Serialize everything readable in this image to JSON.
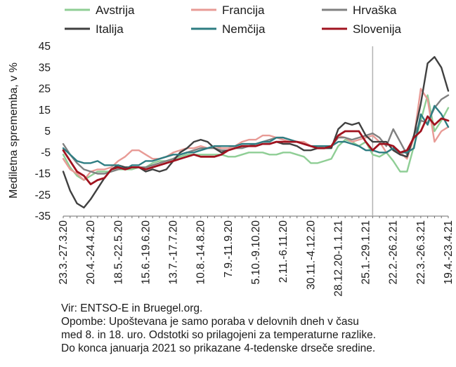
{
  "chart_data": {
    "type": "line",
    "ylabel": "Mediletna sprememba, v %",
    "ylim": [
      -35,
      45
    ],
    "yticks": [
      45,
      35,
      25,
      15,
      5,
      -5,
      -15,
      -25,
      -35
    ],
    "x_tick_labels": [
      "23.3.-27.3.20",
      "20.4.-24.4.20",
      "18.5.-22.5.20",
      "15.6.-19.6.20",
      "13.7.-17.7.20",
      "10.8.-14.8.20",
      "7.9.-11.9.20",
      "5.10.-9.10.20",
      "2.11.-6.11.20",
      "30.11.-4.12.20",
      "28.12.20-1.1.21",
      "25.1.-29.1.21",
      "22.2.-26.2.21",
      "22.3.-26.3.21",
      "19.4.-23.4.21"
    ],
    "x_tick_week_index": [
      0,
      4,
      8,
      12,
      16,
      20,
      24,
      28,
      32,
      36,
      40,
      44,
      48,
      52,
      56
    ],
    "vertical_marker_week_index": 45,
    "grid": false,
    "legend_position": "top",
    "series": [
      {
        "name": "Avstrija",
        "color": "#8fce95",
        "values": [
          -6,
          -12,
          -16,
          -18,
          -16,
          -14,
          -14,
          -14,
          -13,
          -13,
          -13,
          -12,
          -12,
          -10,
          -9,
          -9,
          -8,
          -7,
          -6,
          -6,
          -6,
          -6,
          -6,
          -6,
          -7,
          -7,
          -6,
          -5,
          -5,
          -5,
          -6,
          -6,
          -5,
          -5,
          -6,
          -7,
          -10,
          -10,
          -9,
          -8,
          -2,
          1,
          0,
          -2,
          0,
          -6,
          -7,
          -5,
          -9,
          -14,
          -14,
          -2,
          10,
          22,
          5,
          10,
          16
        ]
      },
      {
        "name": "Francija",
        "color": "#e89b96",
        "values": [
          -8,
          -13,
          -15,
          -18,
          -14,
          -13,
          -13,
          -12,
          -9,
          -7,
          -4,
          -4,
          -6,
          -8,
          -8,
          -7,
          -5,
          -4,
          -3,
          -3,
          -2,
          -3,
          -2,
          -3,
          -3,
          -2,
          0,
          1,
          1,
          3,
          3,
          2,
          1,
          0,
          0,
          0,
          -2,
          -3,
          -2,
          -2,
          3,
          2,
          0,
          1,
          2,
          3,
          0,
          -5,
          -3,
          -5,
          -8,
          2,
          25,
          20,
          0,
          5,
          7
        ]
      },
      {
        "name": "Hrvaška",
        "color": "#808080",
        "values": [
          -1,
          -6,
          -10,
          -13,
          -14,
          -15,
          -15,
          -14,
          -13,
          -12,
          -12,
          -12,
          -12,
          -11,
          -10,
          -9,
          -8,
          -6,
          -5,
          -4,
          -3,
          -3,
          -3,
          -4,
          -4,
          -3,
          -3,
          -2,
          -1,
          0,
          1,
          2,
          2,
          1,
          0,
          -1,
          -2,
          -2,
          -2,
          -2,
          2,
          2,
          1,
          2,
          3,
          4,
          2,
          -2,
          6,
          0,
          -6,
          3,
          10,
          9,
          16,
          20,
          22
        ]
      },
      {
        "name": "Italija",
        "color": "#404040",
        "values": [
          -14,
          -23,
          -29,
          -31,
          -27,
          -22,
          -17,
          -13,
          -11,
          -12,
          -12,
          -12,
          -14,
          -13,
          -14,
          -13,
          -9,
          -5,
          -3,
          0,
          1,
          0,
          -3,
          -5,
          -4,
          -3,
          -2,
          -2,
          -2,
          -1,
          -1,
          0,
          -1,
          -1,
          -2,
          -4,
          -4,
          -3,
          -3,
          -3,
          6,
          9,
          8,
          9,
          3,
          0,
          0,
          0,
          -4,
          -6,
          -7,
          3,
          18,
          37,
          40,
          35,
          24
        ]
      },
      {
        "name": "Nemčija",
        "color": "#2e7d82",
        "values": [
          -3,
          -6,
          -9,
          -10,
          -10,
          -9,
          -11,
          -11,
          -11,
          -13,
          -11,
          -11,
          -9,
          -9,
          -8,
          -7,
          -6,
          -6,
          -5,
          -5,
          -4,
          -3,
          -2,
          -2,
          -2,
          -2,
          -1,
          -1,
          -1,
          0,
          0,
          2,
          2,
          1,
          0,
          -1,
          -2,
          -2,
          -2,
          -2,
          0,
          0,
          -1,
          -2,
          -4,
          -4,
          -5,
          -5,
          -3,
          -5,
          -5,
          -3,
          13,
          8,
          17,
          13,
          7
        ]
      },
      {
        "name": "Slovenija",
        "color": "#a0131f",
        "values": [
          -4,
          -9,
          -14,
          -16,
          -20,
          -18,
          -17,
          -13,
          -12,
          -13,
          -12,
          -12,
          -13,
          -12,
          -11,
          -10,
          -9,
          -8,
          -7,
          -6,
          -7,
          -7,
          -7,
          -6,
          -4,
          -3,
          -2,
          -2,
          -2,
          -1,
          -1,
          0,
          0,
          0,
          0,
          -1,
          -2,
          -3,
          -3,
          -2,
          3,
          5,
          5,
          5,
          0,
          -4,
          -1,
          -1,
          -2,
          -5,
          -4,
          2,
          5,
          12,
          8,
          11,
          10
        ]
      }
    ]
  },
  "notes": {
    "source": "Vir: ENTSO-E in Bruegel.org.",
    "line1": "Opombe: Upoštevana je samo poraba v delovnih dneh v času",
    "line2": "med 8. in 18. uro. Odstotki so prilagojeni za temperaturne razlike.",
    "line3": "Do konca januarja 2021 so prikazane 4-tedenske drseče sredine."
  }
}
